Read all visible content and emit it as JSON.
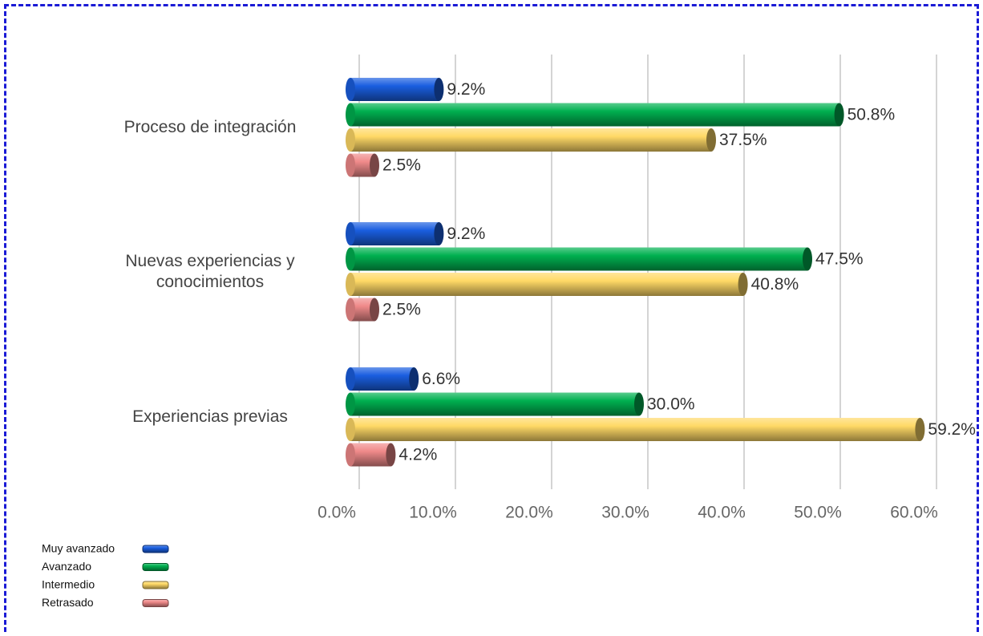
{
  "chart_data": {
    "type": "bar",
    "orientation": "horizontal",
    "categories": [
      "Proceso de integración",
      "Nuevas experiencias y conocimientos",
      "Experiencias previas"
    ],
    "series": [
      {
        "name": "Muy avanzado",
        "color": "#1a5ee0",
        "values": [
          9.2,
          9.2,
          6.6
        ],
        "value_labels": [
          "9.2%",
          "9.2%",
          "6.6%"
        ]
      },
      {
        "name": "Avanzado",
        "color": "#00b050",
        "values": [
          50.8,
          47.5,
          30.0
        ],
        "value_labels": [
          "50.8%",
          "47.5%",
          "30.0%"
        ]
      },
      {
        "name": "Intermedio",
        "color": "#ffd966",
        "values": [
          37.5,
          40.8,
          59.2
        ],
        "value_labels": [
          "37.5%",
          "40.8%",
          "59.2%"
        ]
      },
      {
        "name": "Retrasado",
        "color": "#f08a8a",
        "values": [
          2.5,
          2.5,
          4.2
        ],
        "value_labels": [
          "2.5%",
          "2.5%",
          "4.2%"
        ]
      }
    ],
    "xlim": [
      0,
      60
    ],
    "xticks": [
      {
        "value": 0,
        "label": "0.0%"
      },
      {
        "value": 10,
        "label": "10.0%"
      },
      {
        "value": 20,
        "label": "20.0%"
      },
      {
        "value": 30,
        "label": "30.0%"
      },
      {
        "value": 40,
        "label": "40.0%"
      },
      {
        "value": 50,
        "label": "50.0%"
      },
      {
        "value": 60,
        "label": "60.0%"
      }
    ],
    "grid": true,
    "legend": "bottom-left"
  }
}
